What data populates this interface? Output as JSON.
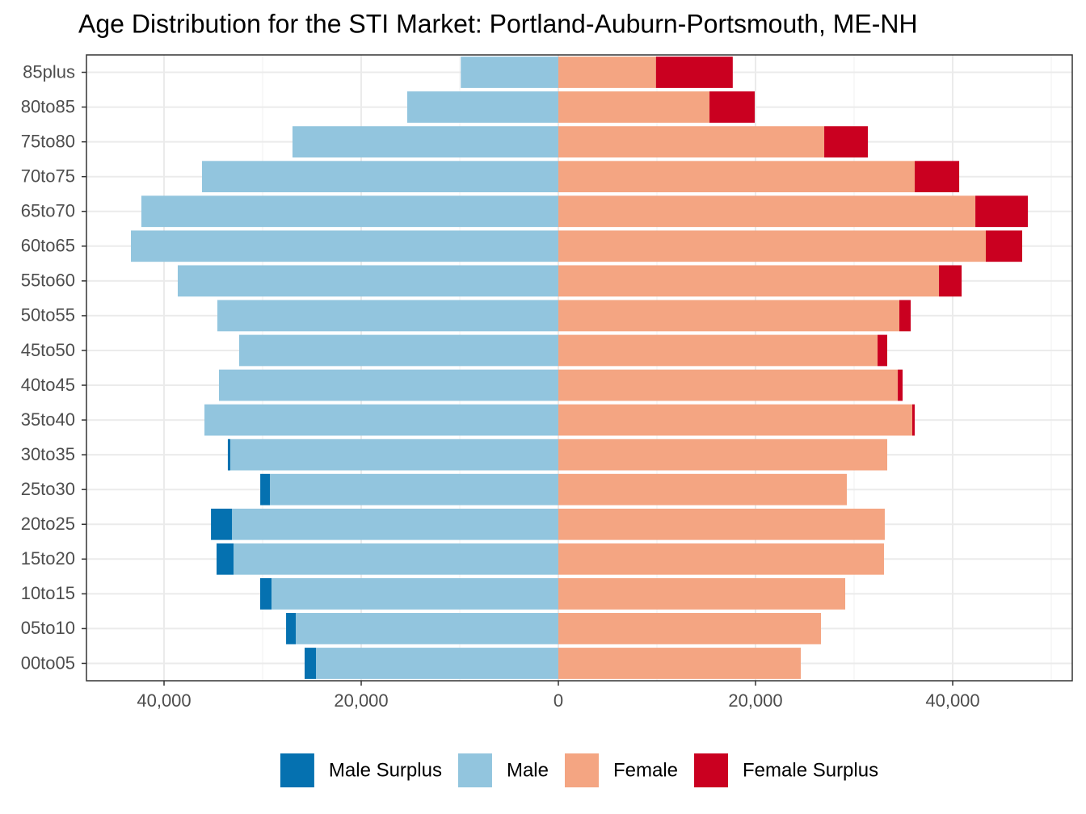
{
  "chart_data": {
    "type": "bar",
    "orientation": "horizontal",
    "stacked": true,
    "title": "Age Distribution for the STI Market: Portland-Auburn-Portsmouth, ME-NH",
    "categories": [
      "85plus",
      "80to85",
      "75to80",
      "70to75",
      "65to70",
      "60to65",
      "55to60",
      "50to55",
      "45to50",
      "40to45",
      "35to40",
      "30to35",
      "25to30",
      "20to25",
      "15to20",
      "10to15",
      "05to10",
      "00to05"
    ],
    "series": [
      {
        "name": "Male Surplus",
        "color": "#0571b0",
        "values": [
          0,
          0,
          0,
          0,
          0,
          0,
          0,
          0,
          0,
          0,
          0,
          -250,
          -980,
          -2130,
          -1720,
          -1150,
          -980,
          -1150
        ]
      },
      {
        "name": "Male",
        "color": "#92c5de",
        "values": [
          -9900,
          -15330,
          -26970,
          -36150,
          -42300,
          -43360,
          -38610,
          -34590,
          -32380,
          -34430,
          -35900,
          -33280,
          -29260,
          -33110,
          -32950,
          -29100,
          -26640,
          -24590
        ]
      },
      {
        "name": "Female",
        "color": "#f4a582",
        "values": [
          9900,
          15330,
          26970,
          36150,
          42300,
          43360,
          38610,
          34590,
          32380,
          34430,
          35900,
          33360,
          29260,
          33110,
          33030,
          29100,
          26640,
          24590
        ]
      },
      {
        "name": "Female Surplus",
        "color": "#ca0020",
        "values": [
          7790,
          4590,
          4430,
          4510,
          5330,
          3690,
          2300,
          1150,
          980,
          490,
          250,
          0,
          0,
          0,
          0,
          0,
          0,
          0
        ]
      }
    ],
    "xlim": [
      -47870,
      52130
    ],
    "xticks": [
      {
        "value": -40000,
        "label": "40,000"
      },
      {
        "value": -20000,
        "label": "20,000"
      },
      0,
      {
        "value": 20000,
        "label": "20,000"
      },
      {
        "value": 40000,
        "label": "40,000"
      }
    ],
    "minor_xticks": [
      -30000,
      -10000,
      10000,
      30000,
      50000
    ],
    "grid": true,
    "legend": "bottom"
  }
}
